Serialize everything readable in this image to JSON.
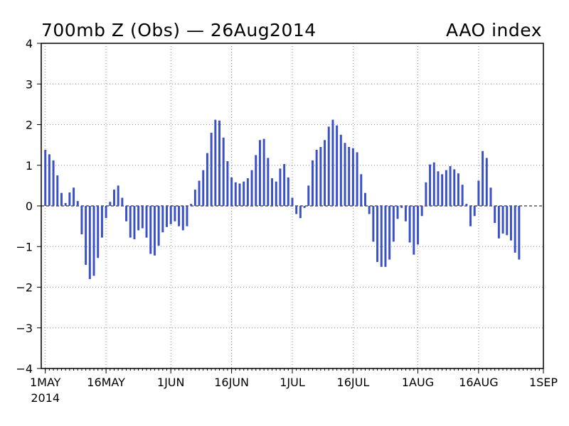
{
  "title_left": "700mb Z (Obs) — 26Aug2014",
  "title_right": "AAO index",
  "chart_data": {
    "type": "bar",
    "title": "700mb Z (Obs) — 26Aug2014",
    "subtitle": "AAO index",
    "xlabel": "",
    "ylabel": "",
    "ylim": [
      -4,
      4
    ],
    "yticks": [
      4,
      3,
      2,
      1,
      0,
      -1,
      -2,
      -3,
      -4
    ],
    "ytick_labels": [
      "4",
      "3",
      "2",
      "1",
      "0",
      "−1",
      "−2",
      "−3",
      "−4"
    ],
    "grid": true,
    "zero_line": "dashed",
    "bar_color": "#3a50c8",
    "x_start": "2014-05-01",
    "day_range": [
      -1,
      123
    ],
    "xticks": [
      {
        "day": 0,
        "label": "1MAY",
        "sublabel": "2014"
      },
      {
        "day": 15,
        "label": "16MAY"
      },
      {
        "day": 31,
        "label": "1JUN"
      },
      {
        "day": 46,
        "label": "16JUN"
      },
      {
        "day": 61,
        "label": "1JUL"
      },
      {
        "day": 76,
        "label": "16JUL"
      },
      {
        "day": 92,
        "label": "1AUG"
      },
      {
        "day": 107,
        "label": "16AUG"
      },
      {
        "day": 123,
        "label": "1SEP"
      }
    ],
    "values": [
      1.38,
      1.27,
      1.12,
      0.75,
      0.32,
      0.07,
      0.33,
      0.45,
      0.12,
      -0.7,
      -1.45,
      -1.8,
      -1.72,
      -1.28,
      -0.78,
      -0.3,
      0.1,
      0.4,
      0.5,
      0.2,
      -0.38,
      -0.78,
      -0.82,
      -0.6,
      -0.55,
      -0.78,
      -1.18,
      -1.22,
      -0.98,
      -0.65,
      -0.52,
      -0.45,
      -0.38,
      -0.5,
      -0.6,
      -0.5,
      0.05,
      0.4,
      0.62,
      0.88,
      1.3,
      1.8,
      2.12,
      2.1,
      1.68,
      1.1,
      0.7,
      0.58,
      0.55,
      0.6,
      0.68,
      0.88,
      1.25,
      1.62,
      1.65,
      1.18,
      0.68,
      0.6,
      0.92,
      1.03,
      0.7,
      0.2,
      -0.2,
      -0.3,
      -0.05,
      0.5,
      1.12,
      1.38,
      1.45,
      1.62,
      1.95,
      2.12,
      1.98,
      1.75,
      1.55,
      1.45,
      1.42,
      1.32,
      0.78,
      0.32,
      -0.2,
      -0.88,
      -1.38,
      -1.5,
      -1.5,
      -1.32,
      -0.88,
      -0.32,
      -0.05,
      -0.38,
      -0.9,
      -1.2,
      -0.95,
      -0.25,
      0.58,
      1.02,
      1.07,
      0.85,
      0.78,
      0.88,
      0.98,
      0.9,
      0.8,
      0.52,
      0.05,
      -0.5,
      -0.25,
      0.62,
      1.35,
      1.18,
      0.45,
      -0.42,
      -0.8,
      -0.68,
      -0.72,
      -0.85,
      -1.15,
      -1.32
    ]
  }
}
